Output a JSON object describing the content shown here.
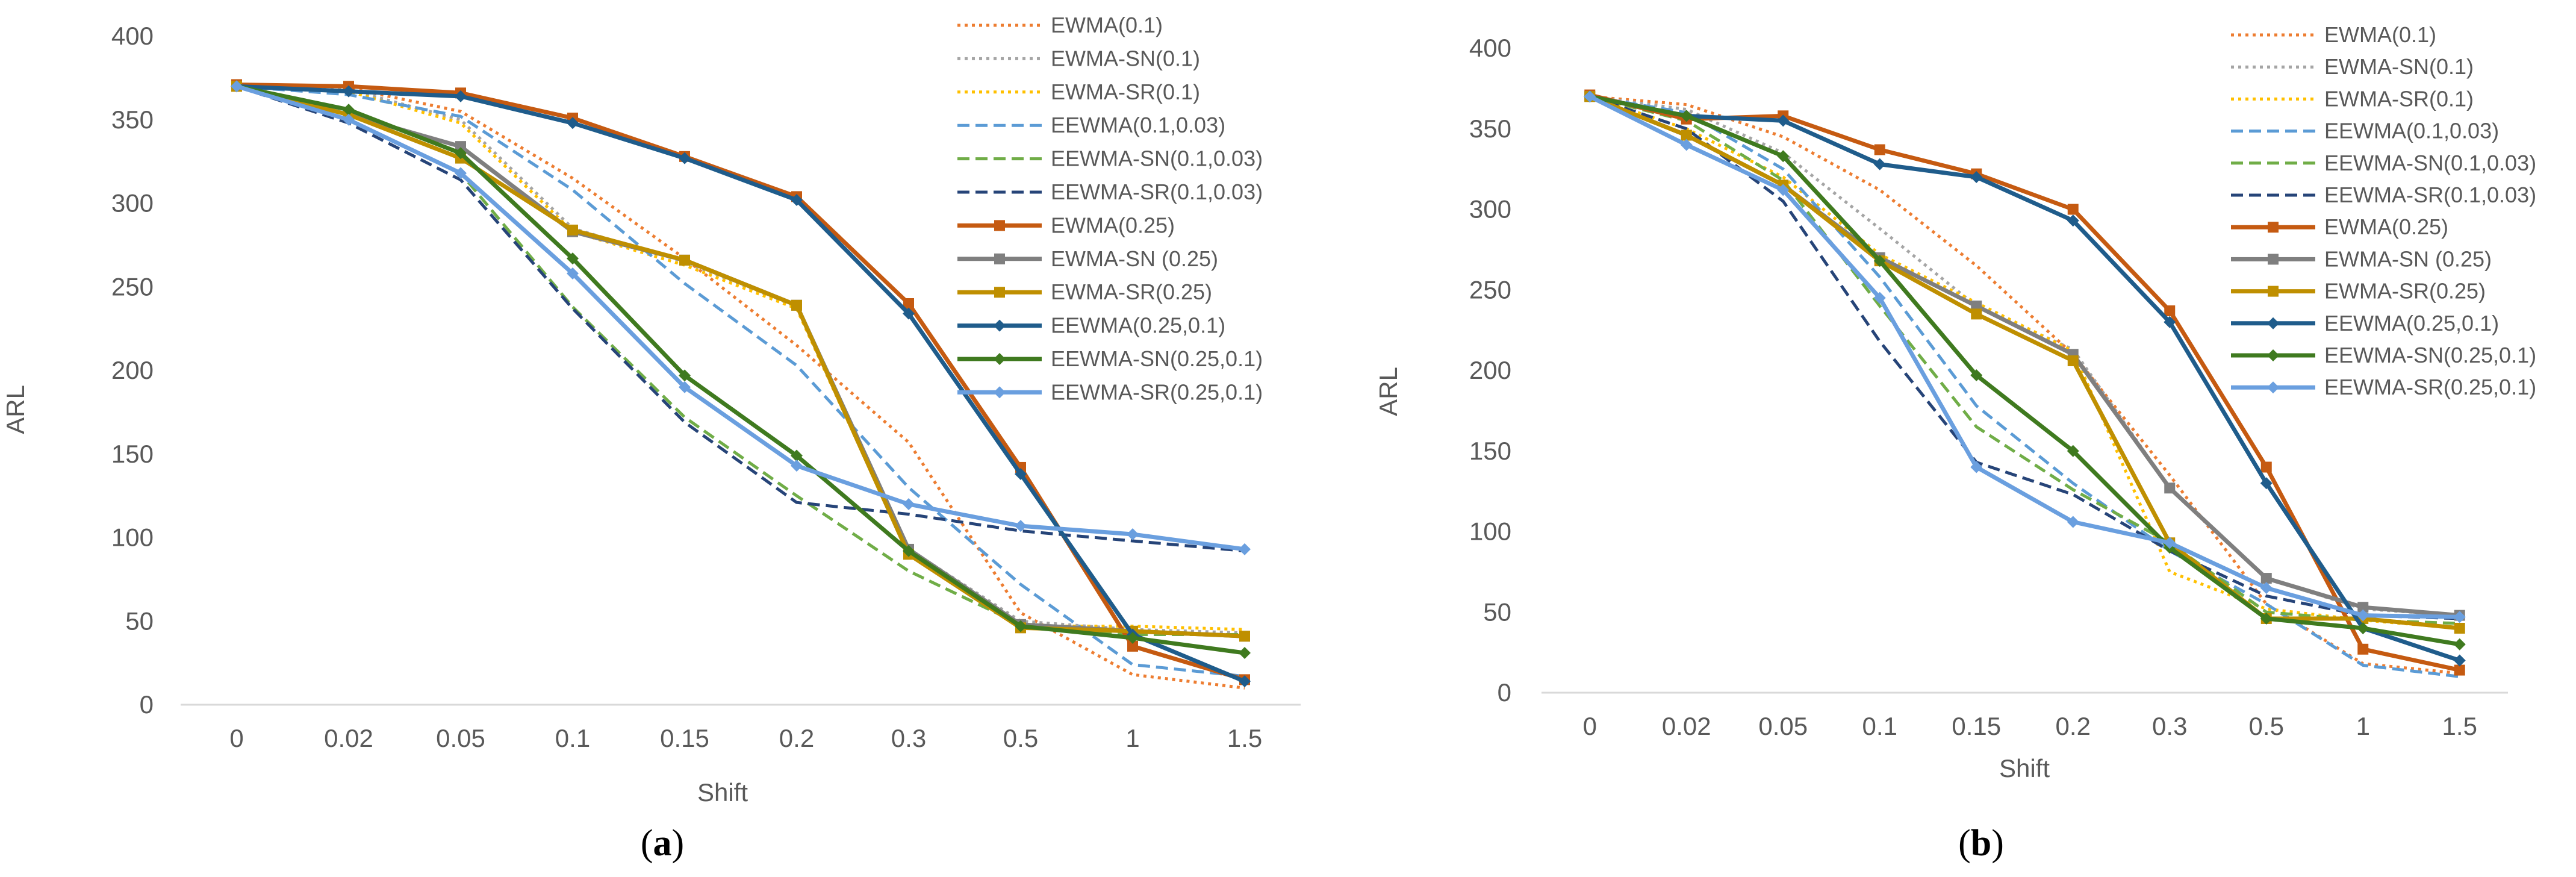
{
  "chart_data": [
    {
      "type": "line",
      "panel_label": "(a)",
      "caption_letter": "a",
      "xlabel": "Shift",
      "ylabel": "ARL",
      "ylim": [
        0,
        400
      ],
      "yticks": [
        "0",
        "50",
        "100",
        "150",
        "200",
        "250",
        "300",
        "350",
        "400"
      ],
      "categories": [
        "0",
        "0.02",
        "0.05",
        "0.1",
        "0.15",
        "0.2",
        "0.3",
        "0.5",
        "1",
        "1.5"
      ],
      "legend_position": "top-right",
      "series": [
        {
          "name": "EWMA(0.1)",
          "values": [
            370,
            369,
            355,
            315,
            267,
            215,
            157,
            55,
            18,
            10
          ]
        },
        {
          "name": "EWMA-SN(0.1)",
          "values": [
            370,
            368,
            350,
            285,
            265,
            238,
            93,
            50,
            45,
            43
          ]
        },
        {
          "name": "EWMA-SR(0.1)",
          "values": [
            370,
            367,
            348,
            283,
            263,
            237,
            90,
            47,
            47,
            45
          ]
        },
        {
          "name": "EEWMA(0.1,0.03)",
          "values": [
            370,
            365,
            352,
            308,
            252,
            203,
            130,
            72,
            24,
            17
          ]
        },
        {
          "name": "EEWMA-SN(0.1,0.03)",
          "values": [
            370,
            350,
            318,
            238,
            172,
            125,
            80,
            48,
            42,
            42
          ]
        },
        {
          "name": "EEWMA-SR(0.1,0.03)",
          "values": [
            370,
            348,
            314,
            237,
            169,
            121,
            114,
            104,
            98,
            92
          ]
        },
        {
          "name": "EWMA(0.25)",
          "values": [
            371,
            370,
            366,
            351,
            328,
            304,
            240,
            142,
            35,
            15
          ]
        },
        {
          "name": "EWMA-SN (0.25)",
          "values": [
            370,
            353,
            334,
            283,
            266,
            239,
            93,
            48,
            44,
            41
          ]
        },
        {
          "name": "EWMA-SR(0.25)",
          "values": [
            370,
            353,
            327,
            284,
            266,
            239,
            90,
            46,
            44,
            41
          ]
        },
        {
          "name": "EEWMA(0.25,0.1)",
          "values": [
            370,
            367,
            364,
            348,
            327,
            302,
            234,
            138,
            42,
            14
          ]
        },
        {
          "name": "EEWMA-SN(0.25,0.1)",
          "values": [
            370,
            356,
            330,
            267,
            197,
            149,
            92,
            47,
            40,
            31
          ]
        },
        {
          "name": "EEWMA-SR(0.25,0.1)",
          "values": [
            370,
            350,
            318,
            258,
            190,
            143,
            120,
            107,
            102,
            93
          ]
        }
      ]
    },
    {
      "type": "line",
      "panel_label": "(b)",
      "caption_letter": "b",
      "xlabel": "Shift",
      "ylabel": "ARL",
      "ylim": [
        0,
        400
      ],
      "yticks": [
        "0",
        "50",
        "100",
        "150",
        "200",
        "250",
        "300",
        "350",
        "400"
      ],
      "categories": [
        "0",
        "0.02",
        "0.05",
        "0.1",
        "0.15",
        "0.2",
        "0.3",
        "0.5",
        "1",
        "1.5"
      ],
      "legend_position": "top-right",
      "series": [
        {
          "name": "EWMA(0.1)",
          "values": [
            370,
            365,
            345,
            312,
            265,
            210,
            135,
            55,
            18,
            12
          ]
        },
        {
          "name": "EWMA-SN(0.1)",
          "values": [
            370,
            362,
            335,
            288,
            240,
            213,
            127,
            71,
            52,
            48
          ]
        },
        {
          "name": "EWMA-SR(0.1)",
          "values": [
            370,
            350,
            320,
            272,
            242,
            212,
            75,
            52,
            45,
            40
          ]
        },
        {
          "name": "EEWMA(0.1,0.03)",
          "values": [
            370,
            360,
            325,
            258,
            178,
            130,
            88,
            55,
            17,
            10
          ]
        },
        {
          "name": "EEWMA-SN(0.1,0.03)",
          "values": [
            370,
            355,
            318,
            240,
            165,
            126,
            93,
            50,
            45,
            43
          ]
        },
        {
          "name": "EEWMA-SR(0.1,0.03)",
          "values": [
            370,
            350,
            305,
            218,
            143,
            123,
            88,
            60,
            48,
            46
          ]
        },
        {
          "name": "EWMA(0.25)",
          "values": [
            371,
            356,
            358,
            337,
            322,
            300,
            237,
            140,
            27,
            14
          ]
        },
        {
          "name": "EWMA-SN (0.25)",
          "values": [
            370,
            346,
            315,
            270,
            240,
            210,
            127,
            71,
            53,
            48
          ]
        },
        {
          "name": "EWMA-SR(0.25)",
          "values": [
            370,
            346,
            315,
            268,
            235,
            206,
            93,
            46,
            46,
            40
          ]
        },
        {
          "name": "EEWMA(0.25,0.1)",
          "values": [
            370,
            358,
            355,
            328,
            320,
            293,
            230,
            130,
            40,
            20
          ]
        },
        {
          "name": "EEWMA-SN(0.25,0.1)",
          "values": [
            370,
            358,
            333,
            268,
            197,
            150,
            90,
            46,
            40,
            30
          ]
        },
        {
          "name": "EEWMA-SR(0.25,0.1)",
          "values": [
            370,
            340,
            312,
            245,
            140,
            106,
            93,
            65,
            48,
            47
          ]
        }
      ]
    }
  ],
  "series_styles": [
    {
      "color": "#ED7D31",
      "dash": "dot",
      "marker": "none"
    },
    {
      "color": "#A5A5A5",
      "dash": "dot",
      "marker": "none"
    },
    {
      "color": "#FFC000",
      "dash": "dot",
      "marker": "none"
    },
    {
      "color": "#5B9BD5",
      "dash": "dash",
      "marker": "none"
    },
    {
      "color": "#70AD47",
      "dash": "dash",
      "marker": "none"
    },
    {
      "color": "#264478",
      "dash": "dash",
      "marker": "none"
    },
    {
      "color": "#C55A11",
      "dash": "solid",
      "marker": "square"
    },
    {
      "color": "#7F7F7F",
      "dash": "solid",
      "marker": "square"
    },
    {
      "color": "#BF8F00",
      "dash": "solid",
      "marker": "square"
    },
    {
      "color": "#1F5C8B",
      "dash": "solid",
      "marker": "diamond"
    },
    {
      "color": "#3F7A1F",
      "dash": "solid",
      "marker": "diamond"
    },
    {
      "color": "#6A9FDF",
      "dash": "solid",
      "marker": "diamond"
    }
  ]
}
